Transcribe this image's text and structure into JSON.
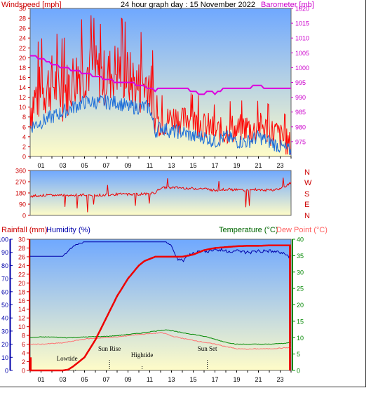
{
  "title": "24 hour graph day : 15 November 2022",
  "colors": {
    "wind": "#ff0000",
    "gust_mean": "#1e6fd9",
    "barometer": "#dd00dd",
    "direction": "#ee0000",
    "rain": "#ee0000",
    "humidity": "#0000aa",
    "temperature": "#008800",
    "dewpoint": "#ff7070",
    "sky_top": "#6fa8ff",
    "sky_bottom": "#fffcc8"
  },
  "labels": {
    "windspeed": "Windspeed [mph]",
    "barometer": "Barometer [mb]",
    "rainfall": "Rainfall (mm)",
    "humidity": "Humidity (%)",
    "temperature": "Temperature (°C)",
    "dewpoint": "Dew Point (°C)",
    "compass": [
      "N",
      "W",
      "S",
      "E",
      "N"
    ]
  },
  "x_ticks": [
    "01",
    "03",
    "05",
    "07",
    "09",
    "11",
    "13",
    "15",
    "17",
    "19",
    "21",
    "23"
  ],
  "chart_data": [
    {
      "type": "line",
      "panel": "wind_barometer",
      "x_range_hours": [
        0,
        24
      ],
      "ylim": [
        0,
        30
      ],
      "y2lim": [
        970,
        1020
      ],
      "yticks": [
        0,
        2,
        4,
        6,
        8,
        10,
        12,
        14,
        16,
        18,
        20,
        22,
        24,
        26,
        28,
        30
      ],
      "y2ticks": [
        975,
        980,
        985,
        990,
        995,
        1000,
        1005,
        1010,
        1015,
        1020
      ],
      "series": [
        {
          "name": "Windspeed [mph]",
          "axis": "left",
          "style": "gust",
          "x": [
            0,
            0.5,
            1,
            1.5,
            2,
            2.5,
            3,
            3.5,
            4,
            4.5,
            5,
            5.5,
            6,
            6.5,
            7,
            7.5,
            8,
            8.5,
            9,
            9.5,
            10,
            10.5,
            11,
            11.5,
            12,
            12.5,
            13,
            13.5,
            14,
            14.5,
            15,
            15.5,
            16,
            16.5,
            17,
            17.5,
            18,
            18.5,
            19,
            19.5,
            20,
            20.5,
            21,
            21.5,
            22,
            22.5,
            23,
            23.5,
            24
          ],
          "values": [
            10,
            12,
            13,
            14,
            15,
            14,
            13,
            14,
            16,
            17,
            17,
            18,
            17,
            16,
            16,
            17,
            18,
            17,
            16,
            15,
            14,
            15,
            15,
            7,
            7,
            7,
            8,
            8,
            7,
            8,
            7,
            7,
            6,
            6,
            5,
            5,
            5,
            6,
            5,
            6,
            6,
            5,
            6,
            6,
            5,
            5,
            4,
            3,
            2
          ]
        },
        {
          "name": "Average",
          "axis": "left",
          "style": "mean",
          "x": [
            0,
            1,
            2,
            3,
            4,
            5,
            6,
            7,
            8,
            9,
            10,
            11,
            11.5,
            12,
            13,
            14,
            15,
            16,
            17,
            18,
            19,
            20,
            21,
            22,
            23,
            24
          ],
          "values": [
            6,
            7,
            8,
            9,
            10,
            11,
            11,
            11,
            11,
            10,
            10,
            10,
            5,
            6,
            5,
            5,
            4,
            4,
            3,
            4,
            3,
            3,
            4,
            3,
            2,
            1
          ]
        },
        {
          "name": "Barometer [mb]",
          "axis": "right",
          "style": "baro",
          "x": [
            0,
            1,
            2,
            3,
            4,
            5,
            6,
            7,
            8,
            9,
            10,
            11,
            11.5,
            12,
            13,
            14,
            15,
            15.8,
            16.5,
            17,
            17.5,
            18,
            19,
            20,
            21,
            21.5,
            22,
            23,
            24
          ],
          "values": [
            1004,
            1003,
            1001,
            1000,
            999,
            998,
            997,
            996,
            995,
            995,
            994,
            993,
            992,
            993,
            993,
            993,
            992,
            991,
            992,
            991,
            992,
            993,
            993,
            993,
            994,
            993,
            993,
            993,
            993
          ]
        }
      ]
    },
    {
      "type": "line",
      "panel": "wind_direction",
      "x_range_hours": [
        0,
        24
      ],
      "ylim": [
        0,
        360
      ],
      "yticks": [
        0,
        90,
        180,
        270,
        360
      ],
      "series": [
        {
          "name": "Wind direction",
          "style": "direction",
          "x": [
            0,
            1,
            2,
            3,
            4,
            5,
            6,
            7,
            8,
            9,
            10,
            11,
            11.5,
            12,
            13,
            14,
            15,
            16,
            17,
            18,
            19,
            20,
            21,
            22,
            23,
            24
          ],
          "values": [
            155,
            160,
            160,
            165,
            160,
            165,
            160,
            165,
            170,
            170,
            170,
            175,
            180,
            220,
            225,
            220,
            215,
            215,
            200,
            210,
            205,
            200,
            210,
            200,
            215,
            260
          ]
        }
      ]
    },
    {
      "type": "line",
      "panel": "rain_humidity_temperature",
      "x_range_hours": [
        0,
        24
      ],
      "ylim": [
        0,
        100
      ],
      "y_rain_lim": [
        0,
        30
      ],
      "y2lim": [
        0,
        40
      ],
      "humidity_ticks": [
        0,
        10,
        20,
        30,
        40,
        50,
        60,
        70,
        80,
        90,
        100
      ],
      "rain_ticks": [
        0,
        2,
        4,
        6,
        8,
        10,
        12,
        14,
        16,
        18,
        20,
        22,
        24,
        26,
        28,
        30
      ],
      "temperature_ticks": [
        0,
        5,
        10,
        15,
        20,
        25,
        30,
        35,
        40
      ],
      "series": [
        {
          "name": "Rainfall (mm)",
          "axis": "rain",
          "x": [
            0,
            1,
            2,
            3,
            3.5,
            4,
            5,
            6,
            7,
            8,
            9,
            10,
            10.5,
            11,
            11.5,
            12,
            13,
            14,
            15,
            16,
            17,
            18,
            19,
            20,
            21,
            22,
            23,
            23.8,
            24
          ],
          "values": [
            0,
            0,
            0,
            0,
            0.2,
            1,
            3,
            7,
            12,
            17,
            21,
            24,
            25,
            25.5,
            26,
            26,
            26,
            26,
            26.5,
            27.5,
            28,
            28.2,
            28.4,
            28.5,
            28.5,
            28.6,
            28.6,
            28.6,
            0
          ]
        },
        {
          "name": "Humidity (%)",
          "axis": "humidity",
          "x": [
            0,
            1,
            2,
            3,
            4,
            5,
            6,
            7,
            8,
            9,
            10,
            11,
            12,
            12.5,
            13,
            13.5,
            14,
            15,
            16,
            17,
            18,
            19,
            20,
            21,
            22,
            23,
            24
          ],
          "values": [
            87,
            87,
            87,
            87,
            95,
            98,
            98,
            98,
            98,
            98,
            98,
            98,
            98,
            98,
            95,
            85,
            84,
            90,
            91,
            92,
            91,
            91,
            90,
            91,
            91,
            90,
            87
          ]
        },
        {
          "name": "Temperature (°C)",
          "axis": "temperature",
          "x": [
            0,
            1,
            2,
            3,
            4,
            5,
            6,
            7,
            8,
            9,
            10,
            11,
            12,
            12.5,
            13,
            14,
            15,
            16,
            17,
            18,
            19,
            20,
            21,
            22,
            23,
            24
          ],
          "values": [
            10,
            10.2,
            10.2,
            10,
            10,
            10.2,
            10.3,
            10.4,
            10.6,
            11,
            11.3,
            11.8,
            12.2,
            12.4,
            12.1,
            11.5,
            11,
            10.4,
            9.5,
            8.6,
            8,
            8,
            8,
            8,
            8.2,
            8.5
          ]
        },
        {
          "name": "Dew Point (°C)",
          "axis": "temperature",
          "x": [
            0,
            1,
            2,
            3,
            4,
            5,
            6,
            7,
            8,
            9,
            10,
            11,
            12,
            12.5,
            13,
            14,
            15,
            16,
            17,
            18,
            19,
            20,
            21,
            22,
            23,
            24
          ],
          "values": [
            8,
            8,
            8.2,
            8.4,
            9,
            9.6,
            9.8,
            10,
            10.2,
            10.6,
            11,
            11.2,
            11.5,
            11.2,
            10.5,
            9.8,
            9.2,
            8.6,
            8,
            7.3,
            6.6,
            6.5,
            6.6,
            6.6,
            6.8,
            7
          ]
        }
      ],
      "annotations": [
        {
          "text": "Lowtide",
          "x": 3.4
        },
        {
          "text": "Sun Rise",
          "x": 7.3
        },
        {
          "text": "Hightide",
          "x": 10.3
        },
        {
          "text": "Sun Set",
          "x": 16.3
        }
      ]
    }
  ]
}
